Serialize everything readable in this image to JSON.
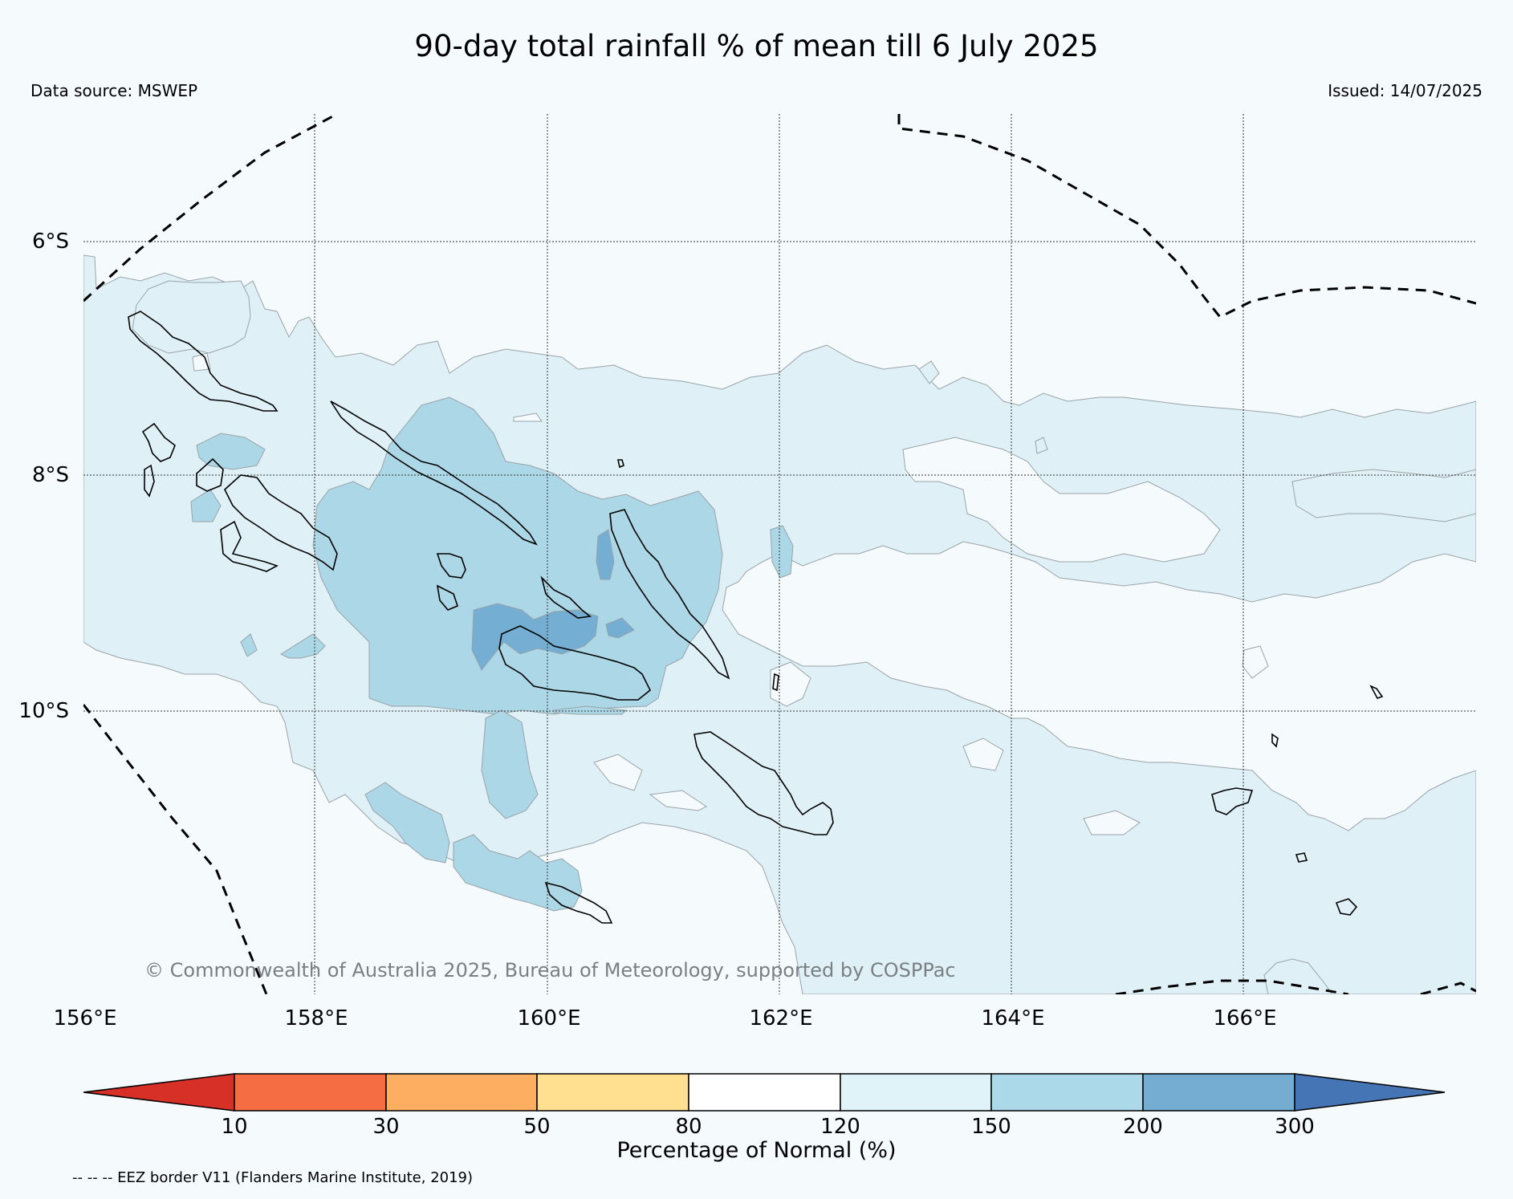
{
  "header": {
    "title": "90-day total rainfall % of mean till 6 July 2025",
    "data_source": "Data source: MSWEP",
    "issued": "Issued: 14/07/2025"
  },
  "map": {
    "latitude_labels": [
      "6°S",
      "8°S",
      "10°S"
    ],
    "longitude_labels": [
      "156°E",
      "158°E",
      "160°E",
      "162°E",
      "164°E",
      "166°E"
    ],
    "copyright": "© Commonwealth of Australia 2025, Bureau of Meteorology, supported by COSPPac",
    "background_color": "#f5fafd",
    "fill_colors": {
      "120-150": "#dff1f7",
      "150-200": "#abd7e6",
      "200-300": "#74aed3"
    }
  },
  "colorbar": {
    "label": "Percentage of Normal (%)",
    "ticks": [
      "10",
      "30",
      "50",
      "80",
      "120",
      "150",
      "200",
      "300"
    ],
    "colors": [
      "#d73027",
      "#f46d43",
      "#fdae61",
      "#fee090",
      "#ffffff",
      "#e0f3f8",
      "#abd9e9",
      "#74add1",
      "#4575b4"
    ]
  },
  "footnote": "-- -- -- EEZ border V11 (Flanders Marine Institute, 2019)"
}
